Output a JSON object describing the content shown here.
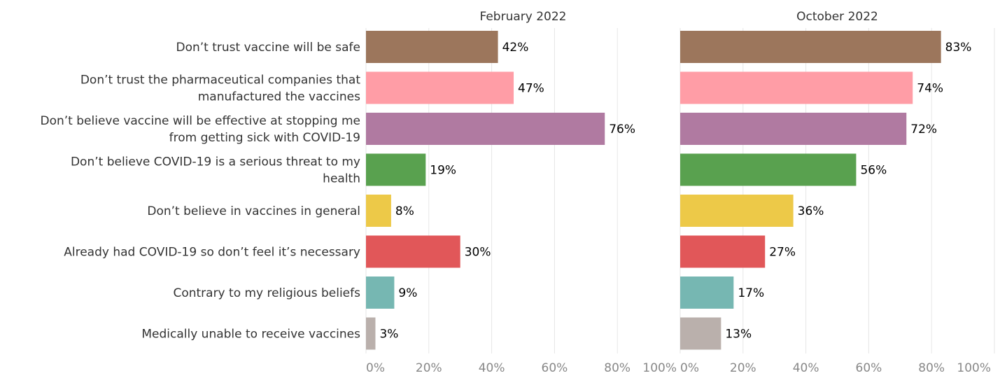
{
  "chart_data": {
    "type": "bar",
    "orientation": "horizontal",
    "categories": [
      [
        "Don’t trust vaccine will be safe"
      ],
      [
        "Don’t trust the pharmaceutical companies that",
        "manufactured the vaccines"
      ],
      [
        "Don’t believe vaccine will be effective at stopping me",
        "from getting sick with COVID-19"
      ],
      [
        "Don’t believe COVID-19 is a serious threat to my",
        "health"
      ],
      [
        "Don’t believe in vaccines in general"
      ],
      [
        "Already had COVID-19 so don’t feel it’s necessary"
      ],
      [
        "Contrary to my religious beliefs"
      ],
      [
        "Medically unable to receive vaccines"
      ]
    ],
    "colors": [
      "#9c765c",
      "#ff9da6",
      "#b07aa1",
      "#59a14f",
      "#edc948",
      "#e15759",
      "#76b7b2",
      "#bab0ac"
    ],
    "panels": [
      {
        "title": "February 2022",
        "values": [
          42,
          47,
          76,
          19,
          8,
          30,
          9,
          3
        ],
        "value_labels": [
          "42%",
          "47%",
          "76%",
          "19%",
          "8%",
          "30%",
          "9%",
          "3%"
        ]
      },
      {
        "title": "October 2022",
        "values": [
          83,
          74,
          72,
          56,
          36,
          27,
          17,
          13
        ],
        "value_labels": [
          "83%",
          "74%",
          "72%",
          "56%",
          "36%",
          "27%",
          "17%",
          "13%"
        ]
      }
    ],
    "xlim": [
      0,
      100
    ],
    "xticks": [
      0,
      20,
      40,
      60,
      80,
      100
    ],
    "xtick_labels": [
      "0%",
      "20%",
      "40%",
      "60%",
      "80%",
      "100%"
    ],
    "grid": true
  }
}
